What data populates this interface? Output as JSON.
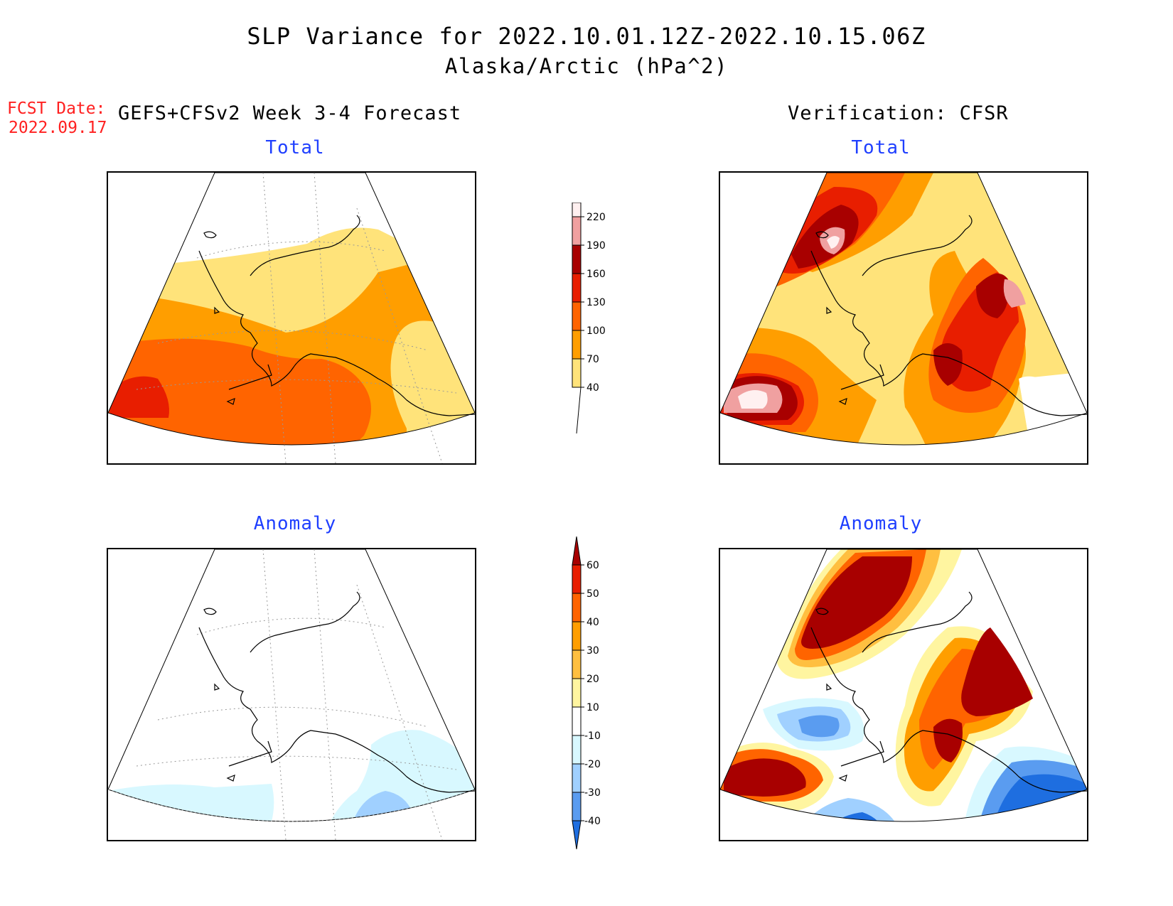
{
  "header": {
    "title": "SLP Variance for 2022.10.01.12Z-2022.10.15.06Z",
    "subtitle": "Alaska/Arctic (hPa^2)",
    "fcst_label": "FCST Date:",
    "fcst_date": "2022.09.17",
    "left_column_title": "GEFS+CFSv2 Week 3-4 Forecast",
    "right_column_title": "Verification: CFSR"
  },
  "panels": {
    "forecast_total": {
      "title": "Total"
    },
    "verification_total": {
      "title": "Total"
    },
    "forecast_anomaly": {
      "title": "Anomaly"
    },
    "verification_anomaly": {
      "title": "Anomaly"
    }
  },
  "colorbars": {
    "total": {
      "levels": [
        "40",
        "70",
        "100",
        "130",
        "160",
        "190",
        "220"
      ],
      "colors": [
        "#ffe37a",
        "#ff9e00",
        "#ff6400",
        "#e81e00",
        "#a80000",
        "#f0a0a0",
        "#fff0f0"
      ]
    },
    "anomaly": {
      "levels": [
        "60",
        "50",
        "40",
        "30",
        "20",
        "10",
        "-10",
        "-20",
        "-30",
        "-40"
      ],
      "colors": [
        "#a80000",
        "#e81e00",
        "#ff6400",
        "#ff9e00",
        "#ffbf40",
        "#fff5a0",
        "#ffffff",
        "#d8f8ff",
        "#a0d0ff",
        "#5a9cf0",
        "#1e6ee0"
      ]
    }
  },
  "map_colors": {
    "coast": "#000000",
    "grid": "#999999"
  }
}
